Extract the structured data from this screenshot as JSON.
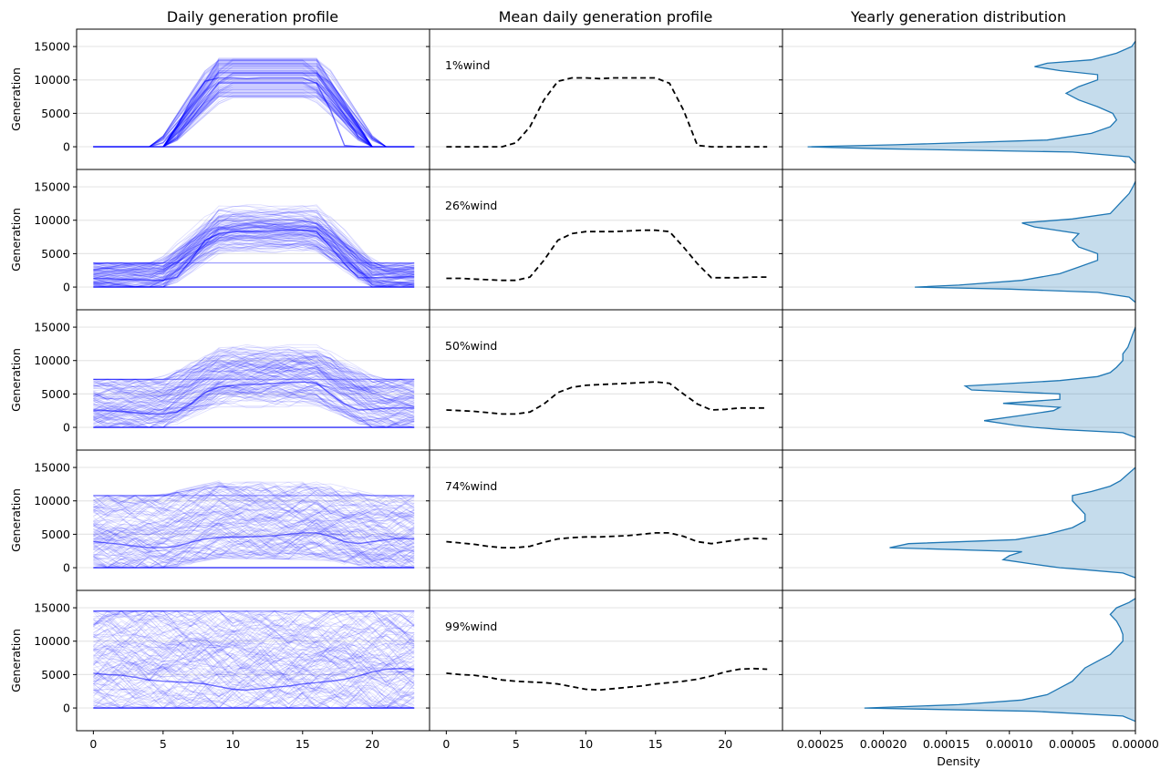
{
  "chart_data": {
    "type": "line",
    "column_titles": [
      "Daily generation profile",
      "Mean daily generation profile",
      "Yearly generation distribution"
    ],
    "ylabel": "Generation",
    "ylim": [
      -3400,
      17600
    ],
    "yticks": [
      0,
      5000,
      10000,
      15000
    ],
    "ytick_labels": [
      "0",
      "5000",
      "10000",
      "15000"
    ],
    "profile_xlim": [
      -1.2,
      24.1
    ],
    "profile_xticks": [
      0,
      5,
      10,
      15,
      20
    ],
    "profile_xtick_labels": [
      "0",
      "5",
      "10",
      "15",
      "20"
    ],
    "density_xlabel": "Density",
    "density_xlim": [
      0.00028,
      0.0
    ],
    "density_xticks": [
      0.00025,
      0.0002,
      0.00015,
      0.0001,
      5e-05,
      0.0
    ],
    "density_xtick_labels": [
      "0.00025",
      "0.00020",
      "0.00015",
      "0.00010",
      "0.00005",
      "0.00000"
    ],
    "hours": [
      0,
      1,
      2,
      3,
      4,
      5,
      6,
      7,
      8,
      9,
      10,
      11,
      12,
      13,
      14,
      15,
      16,
      17,
      18,
      19,
      20,
      21,
      22,
      23
    ],
    "rows": [
      {
        "label": "1%wind",
        "wind_cap": 0,
        "solar_max": 13300,
        "mean_profile": [
          0,
          0,
          0,
          0,
          0,
          600,
          3000,
          7000,
          9800,
          10300,
          10300,
          10200,
          10300,
          10300,
          10300,
          10300,
          9500,
          5500,
          200,
          0,
          0,
          0,
          0,
          0
        ],
        "density": {
          "y": [
            -2500,
            -1500,
            -800,
            -300,
            0,
            300,
            1000,
            2000,
            3000,
            4000,
            5000,
            6000,
            7000,
            8000,
            9000,
            10000,
            10800,
            11400,
            12000,
            12500,
            13000,
            14000,
            15000,
            15800
          ],
          "d": [
            0.0,
            5e-06,
            5e-05,
            0.0002,
            0.00026,
            0.00019,
            7e-05,
            3.5e-05,
            2e-05,
            1.5e-05,
            1.8e-05,
            3e-05,
            4.5e-05,
            5.5e-05,
            4.5e-05,
            3e-05,
            3e-05,
            6e-05,
            8e-05,
            7e-05,
            3.5e-05,
            1.5e-05,
            3e-06,
            0.0
          ]
        }
      },
      {
        "label": "26%wind",
        "wind_cap": 3600,
        "solar_max": 13300,
        "mean_profile": [
          1300,
          1300,
          1200,
          1100,
          1000,
          1000,
          1500,
          4000,
          7000,
          8000,
          8300,
          8300,
          8300,
          8400,
          8500,
          8500,
          8300,
          6000,
          3500,
          1400,
          1400,
          1400,
          1500,
          1500
        ],
        "density": {
          "y": [
            -2300,
            -1500,
            -800,
            -300,
            0,
            300,
            1000,
            2000,
            3000,
            4000,
            5000,
            6000,
            7000,
            8000,
            9000,
            9600,
            10200,
            11000,
            12000,
            13000,
            14000,
            15000,
            15800
          ],
          "d": [
            0.0,
            5e-06,
            3e-05,
            0.0001,
            0.000175,
            0.00014,
            9e-05,
            6e-05,
            4.5e-05,
            3e-05,
            3e-05,
            4.5e-05,
            5e-05,
            4.5e-05,
            8e-05,
            9e-05,
            5e-05,
            2e-05,
            1.5e-05,
            1e-05,
            5e-06,
            2e-06,
            0.0
          ]
        }
      },
      {
        "label": "50%wind",
        "wind_cap": 7200,
        "solar_max": 13900,
        "mean_profile": [
          2600,
          2500,
          2400,
          2200,
          2000,
          2000,
          2300,
          3500,
          5200,
          6000,
          6300,
          6400,
          6500,
          6600,
          6700,
          6800,
          6600,
          5000,
          3500,
          2600,
          2700,
          2900,
          2900,
          2900
        ],
        "density": {
          "y": [
            -1500,
            -800,
            -300,
            0,
            300,
            1000,
            1800,
            2500,
            3000,
            3600,
            4200,
            5000,
            5600,
            6200,
            7000,
            7600,
            8200,
            9000,
            10000,
            11000,
            12000,
            13000,
            14000,
            15000
          ],
          "d": [
            0.0,
            1e-05,
            6e-05,
            8e-05,
            9.5e-05,
            0.00012,
            9e-05,
            6.5e-05,
            6e-05,
            0.000105,
            6e-05,
            6e-05,
            0.00013,
            0.000135,
            6e-05,
            3e-05,
            2e-05,
            1.5e-05,
            1e-05,
            1e-05,
            6e-06,
            4e-06,
            2e-06,
            0.0
          ]
        }
      },
      {
        "label": "74%wind",
        "wind_cap": 10800,
        "solar_max": 14000,
        "mean_profile": [
          3900,
          3700,
          3500,
          3200,
          3000,
          3000,
          3200,
          3800,
          4300,
          4500,
          4600,
          4600,
          4700,
          4800,
          5000,
          5200,
          5200,
          4700,
          3900,
          3600,
          3900,
          4200,
          4400,
          4300
        ],
        "density": {
          "y": [
            -1500,
            -800,
            -300,
            0,
            500,
            1200,
            1800,
            2400,
            3000,
            3600,
            4200,
            5000,
            6000,
            7000,
            8000,
            9000,
            10000,
            10800,
            11400,
            12200,
            13000,
            14000,
            15000
          ],
          "d": [
            0.0,
            1e-05,
            4e-05,
            6e-05,
            8e-05,
            0.000105,
            0.0001,
            9e-05,
            0.000195,
            0.00018,
            9.5e-05,
            7e-05,
            5e-05,
            4e-05,
            4e-05,
            4.5e-05,
            5e-05,
            5e-05,
            3.5e-05,
            2e-05,
            1.2e-05,
            6e-06,
            0.0
          ]
        }
      },
      {
        "label": "99%wind",
        "wind_cap": 14500,
        "solar_max": 14500,
        "mean_profile": [
          5200,
          5000,
          4900,
          4600,
          4200,
          4000,
          3900,
          3800,
          3600,
          3200,
          2800,
          2700,
          2900,
          3100,
          3300,
          3600,
          3800,
          4000,
          4300,
          4800,
          5400,
          5800,
          5900,
          5800
        ],
        "density": {
          "y": [
            -2000,
            -1200,
            -500,
            0,
            500,
            1200,
            2000,
            3000,
            4000,
            5000,
            6000,
            7000,
            8000,
            9000,
            10000,
            11000,
            12000,
            13000,
            14000,
            15000,
            15800,
            16400
          ],
          "d": [
            0.0,
            1e-05,
            8e-05,
            0.000215,
            0.00014,
            9e-05,
            7e-05,
            6e-05,
            5e-05,
            4.5e-05,
            4e-05,
            3e-05,
            2e-05,
            1.5e-05,
            1e-05,
            1e-05,
            1.2e-05,
            1.5e-05,
            2e-05,
            1.5e-05,
            5e-06,
            0.0
          ]
        }
      }
    ]
  }
}
